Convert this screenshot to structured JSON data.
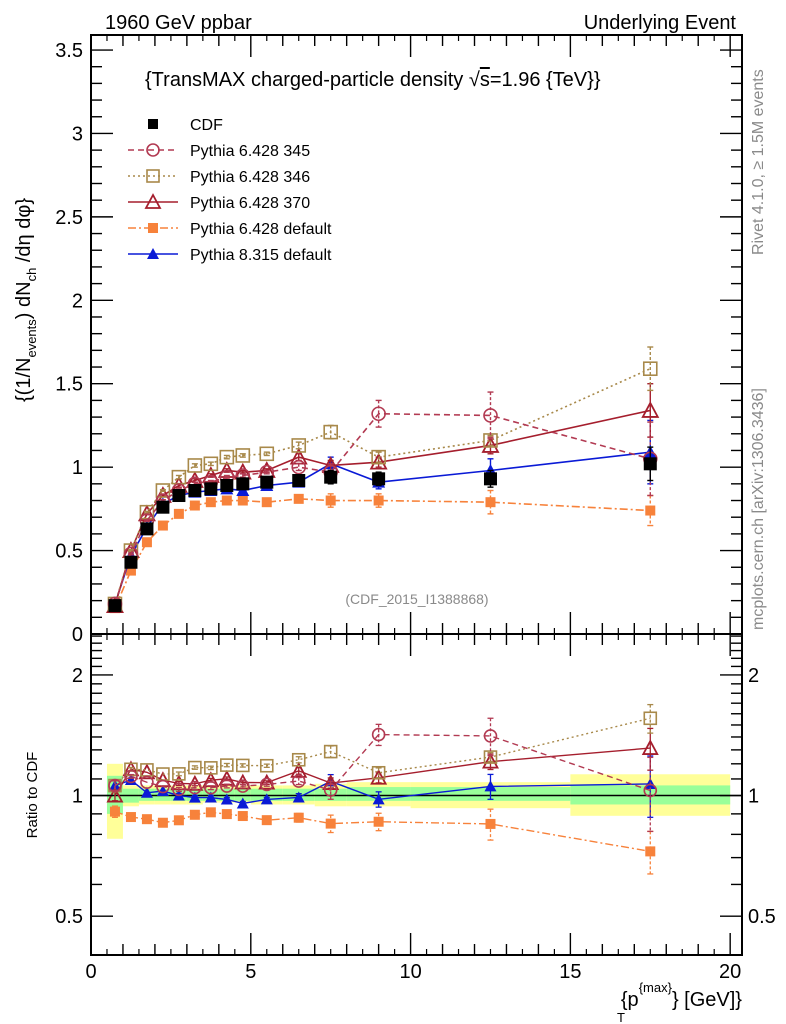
{
  "header": {
    "left": "1960 GeV ppbar",
    "right": "Underlying Event"
  },
  "side_text": {
    "rivet": "Rivet 4.1.0, ≥ 1.5M events",
    "mcplots": "mcplots.cern.ch [arXiv:1306.3436]"
  },
  "analysis_id": "(CDF_2015_I1388868)",
  "chart_data": [
    {
      "panel": "main",
      "type": "line",
      "title": "{TransMAX charged-particle density √s=1.96 {TeV}}",
      "title_parts": {
        "before": "{TransMAX charged-particle density ",
        "sqrt": "√",
        "s": "s",
        "after": "=1.96 {TeV}}"
      },
      "ylabel": "{(1/N_events) dN_ch /dη dφ}",
      "ylabel_parts": {
        "a": "{(1/N",
        "a_sub": "events",
        "b": ") dN",
        "b_sub": "ch",
        "c": " /dη  dφ}"
      },
      "xlabel": "{p_T^{max}} [GeV]",
      "xlim": [
        0,
        20.37
      ],
      "ylim": [
        0,
        3.59
      ],
      "yticks": [
        0,
        0.5,
        1,
        1.5,
        2,
        2.5,
        3,
        3.5
      ],
      "ytick_labels": [
        "0",
        "0.5",
        "1",
        "1.5",
        "2",
        "2.5",
        "3",
        "3.5"
      ],
      "xticks": [
        0,
        5,
        10,
        15,
        20
      ],
      "legend_position": "top-left",
      "x": [
        0.75,
        1.25,
        1.75,
        2.25,
        2.75,
        3.25,
        3.75,
        4.25,
        4.75,
        5.5,
        6.5,
        7.5,
        9.0,
        12.5,
        17.5
      ],
      "bin_edges": [
        0.5,
        1,
        1.5,
        2,
        2.5,
        3,
        3.5,
        4,
        4.5,
        5,
        6,
        7,
        8,
        10,
        15,
        20
      ],
      "series": [
        {
          "name": "CDF",
          "style": "data",
          "color": "#000000",
          "marker": "filled-square",
          "line": "none",
          "values": [
            0.17,
            0.43,
            0.63,
            0.76,
            0.83,
            0.86,
            0.87,
            0.89,
            0.9,
            0.91,
            0.92,
            0.94,
            0.93,
            0.93,
            1.02
          ],
          "errors": [
            0.01,
            0.01,
            0.01,
            0.01,
            0.01,
            0.01,
            0.01,
            0.01,
            0.01,
            0.02,
            0.03,
            0.04,
            0.04,
            0.05,
            0.1
          ]
        },
        {
          "name": "Pythia 6.428 345",
          "color": "#b23a52",
          "marker": "open-circle",
          "line": "dashed",
          "values": [
            0.18,
            0.48,
            0.68,
            0.8,
            0.86,
            0.9,
            0.91,
            0.94,
            0.95,
            0.97,
            1.0,
            0.97,
            1.32,
            1.31,
            1.05
          ],
          "errors": [
            0.005,
            0.005,
            0.005,
            0.005,
            0.01,
            0.01,
            0.01,
            0.01,
            0.01,
            0.01,
            0.02,
            0.05,
            0.08,
            0.14,
            0.22
          ]
        },
        {
          "name": "Pythia 6.428 346",
          "color": "#a8894a",
          "marker": "open-square",
          "line": "dotted",
          "values": [
            0.18,
            0.5,
            0.73,
            0.86,
            0.94,
            1.01,
            1.02,
            1.06,
            1.07,
            1.08,
            1.13,
            1.21,
            1.06,
            1.16,
            1.59
          ],
          "errors": [
            0.005,
            0.005,
            0.005,
            0.005,
            0.01,
            0.01,
            0.01,
            0.01,
            0.01,
            0.01,
            0.02,
            0.04,
            0.03,
            0.03,
            0.13
          ]
        },
        {
          "name": "Pythia 6.428 370",
          "color": "#a51e2d",
          "marker": "open-triangle",
          "line": "solid",
          "values": [
            0.17,
            0.5,
            0.72,
            0.83,
            0.89,
            0.92,
            0.95,
            0.98,
            0.97,
            0.98,
            1.06,
            1.01,
            1.03,
            1.13,
            1.34
          ],
          "errors": [
            0.005,
            0.005,
            0.005,
            0.005,
            0.01,
            0.01,
            0.01,
            0.01,
            0.01,
            0.01,
            0.02,
            0.03,
            0.03,
            0.05,
            0.16
          ]
        },
        {
          "name": "Pythia 6.428 default",
          "color": "#f7823b",
          "marker": "filled-square",
          "line": "dashdot",
          "values": [
            0.155,
            0.38,
            0.55,
            0.65,
            0.72,
            0.77,
            0.79,
            0.8,
            0.8,
            0.79,
            0.81,
            0.8,
            0.8,
            0.79,
            0.74
          ],
          "errors": [
            0.005,
            0.005,
            0.005,
            0.005,
            0.01,
            0.01,
            0.01,
            0.01,
            0.01,
            0.01,
            0.02,
            0.04,
            0.04,
            0.07,
            0.09
          ]
        },
        {
          "name": "Pythia 8.315 default",
          "color": "#0a1ad6",
          "marker": "filled-triangle",
          "line": "solid",
          "values": [
            0.18,
            0.47,
            0.64,
            0.78,
            0.83,
            0.85,
            0.86,
            0.87,
            0.86,
            0.89,
            0.91,
            1.02,
            0.91,
            0.98,
            1.09
          ],
          "errors": [
            0.005,
            0.005,
            0.005,
            0.005,
            0.01,
            0.01,
            0.01,
            0.01,
            0.01,
            0.01,
            0.02,
            0.04,
            0.04,
            0.07,
            0.19
          ]
        }
      ]
    },
    {
      "panel": "ratio",
      "type": "line",
      "ylabel": "Ratio to CDF",
      "yscale": "log",
      "ylim": [
        0.4,
        2.53
      ],
      "yticks": [
        0.5,
        1,
        2
      ],
      "ytick_labels": [
        "0.5",
        "1",
        "2"
      ],
      "xticks": [
        0,
        5,
        10,
        15,
        20
      ],
      "xtick_labels": [
        "0",
        "5",
        "10",
        "15",
        "20"
      ],
      "xlabel_parts": {
        "a": "{p",
        "sub": "T",
        "sup": "{max}",
        "b": "} [GeV]}"
      },
      "reference_line": 1,
      "bands": {
        "stat_color": "#99ff99",
        "total_color": "#ffff99",
        "bin_edges": [
          0.5,
          1,
          1.5,
          2,
          2.5,
          3,
          3.5,
          4,
          4.5,
          5,
          6,
          7,
          8,
          10,
          15,
          20
        ],
        "stat_low": [
          0.9,
          0.96,
          0.97,
          0.97,
          0.97,
          0.97,
          0.97,
          0.97,
          0.97,
          0.97,
          0.97,
          0.97,
          0.97,
          0.97,
          0.95
        ],
        "stat_high": [
          1.12,
          1.04,
          1.04,
          1.04,
          1.04,
          1.04,
          1.04,
          1.04,
          1.04,
          1.04,
          1.04,
          1.04,
          1.05,
          1.05,
          1.06
        ],
        "total_low": [
          0.78,
          0.94,
          0.95,
          0.95,
          0.95,
          0.95,
          0.96,
          0.96,
          0.96,
          0.95,
          0.95,
          0.94,
          0.94,
          0.93,
          0.89
        ],
        "total_high": [
          1.2,
          1.06,
          1.06,
          1.06,
          1.06,
          1.06,
          1.06,
          1.06,
          1.06,
          1.06,
          1.06,
          1.07,
          1.08,
          1.08,
          1.13
        ]
      }
    }
  ]
}
